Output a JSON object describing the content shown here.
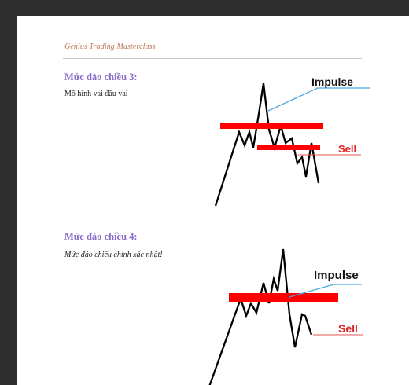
{
  "header": {
    "title": "Genius Trading Masterclass"
  },
  "section1": {
    "heading": "Mức đảo chiều 3:",
    "text": "Mô hình vai đầu vai",
    "impulse_label": "Impulse",
    "sell_label": "Sell"
  },
  "section2": {
    "heading": "Mức đảo chiều 4:",
    "text": "Mức đảo chiều chính xác nhất!",
    "impulse_label": "Impulse",
    "sell_label": "Sell"
  },
  "colors": {
    "header_text": "#c0785a",
    "heading": "#8a6cc9",
    "zone_red": "#ff0000",
    "impulse_line": "#4aa8e0",
    "sell_text": "#e0262b"
  }
}
